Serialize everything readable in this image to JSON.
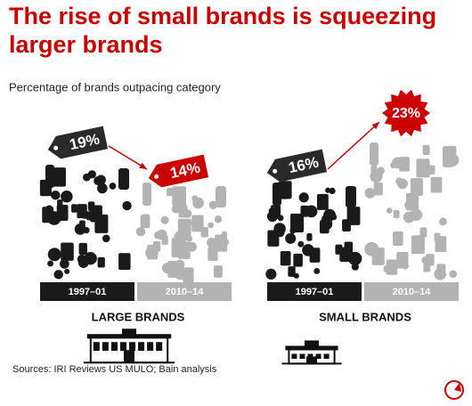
{
  "header": {
    "title": "The rise of small brands is squeezing larger brands",
    "subtitle": "Percentage of brands outpacing category"
  },
  "source": "Sources: IRI Reviews US MULO; Bain analysis",
  "chart_data": [
    {
      "type": "tag-pile",
      "title": "LARGE BRANDS",
      "categories": [
        "1997–01",
        "2010–14"
      ],
      "values": [
        19,
        14
      ],
      "value_labels": [
        "19%",
        "14%"
      ],
      "colors": [
        "#1a1a1a",
        "#b3b3b3"
      ],
      "marker_colors": [
        "#2a2a2a",
        "#cc0000"
      ],
      "markers": [
        "tag",
        "tag"
      ]
    },
    {
      "type": "tag-pile",
      "title": "SMALL BRANDS",
      "categories": [
        "1997–01",
        "2010–14"
      ],
      "values": [
        16,
        23
      ],
      "value_labels": [
        "16%",
        "23%"
      ],
      "colors": [
        "#1a1a1a",
        "#b3b3b3"
      ],
      "marker_colors": [
        "#2a2a2a",
        "#cc0000"
      ],
      "markers": [
        "tag",
        "burst"
      ]
    }
  ]
}
